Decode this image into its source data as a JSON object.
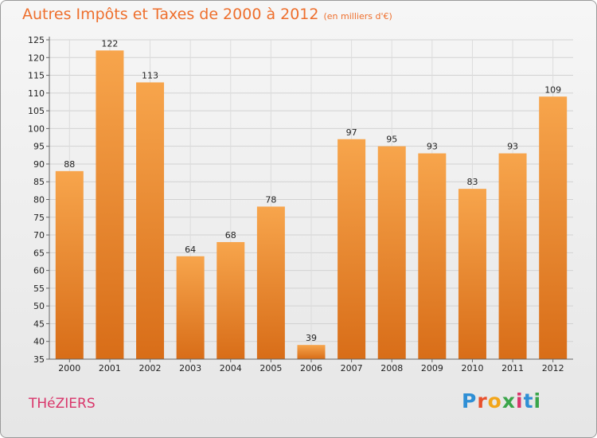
{
  "title": "Autres Impôts et Taxes de 2000 à 2012",
  "unit": "(en milliers d'€)",
  "commune": "THéZIERS",
  "logo": {
    "letters": [
      {
        "ch": "P",
        "color": "#2f8fd5"
      },
      {
        "ch": "r",
        "color": "#e8502c"
      },
      {
        "ch": "o",
        "color": "#f2a51a"
      },
      {
        "ch": "x",
        "color": "#3aa54a"
      },
      {
        "ch": "i",
        "color": "#d9356a"
      },
      {
        "ch": "t",
        "color": "#2f8fd5"
      },
      {
        "ch": "i",
        "color": "#3aa54a"
      }
    ]
  },
  "colors": {
    "bar_top": "#f7a54c",
    "bar_bottom": "#d86d18",
    "title": "#ee6f2d",
    "commune": "#d9356a"
  },
  "chart_data": {
    "type": "bar",
    "categories": [
      "2000",
      "2001",
      "2002",
      "2003",
      "2004",
      "2005",
      "2006",
      "2007",
      "2008",
      "2009",
      "2010",
      "2011",
      "2012"
    ],
    "values": [
      88,
      122,
      113,
      64,
      68,
      78,
      39,
      97,
      95,
      93,
      83,
      93,
      109
    ],
    "ylim": [
      35,
      125
    ],
    "yticks": [
      35,
      40,
      45,
      50,
      55,
      60,
      65,
      70,
      75,
      80,
      85,
      90,
      95,
      100,
      105,
      110,
      115,
      120,
      125
    ],
    "grid": true,
    "xlabel": "",
    "ylabel": ""
  }
}
